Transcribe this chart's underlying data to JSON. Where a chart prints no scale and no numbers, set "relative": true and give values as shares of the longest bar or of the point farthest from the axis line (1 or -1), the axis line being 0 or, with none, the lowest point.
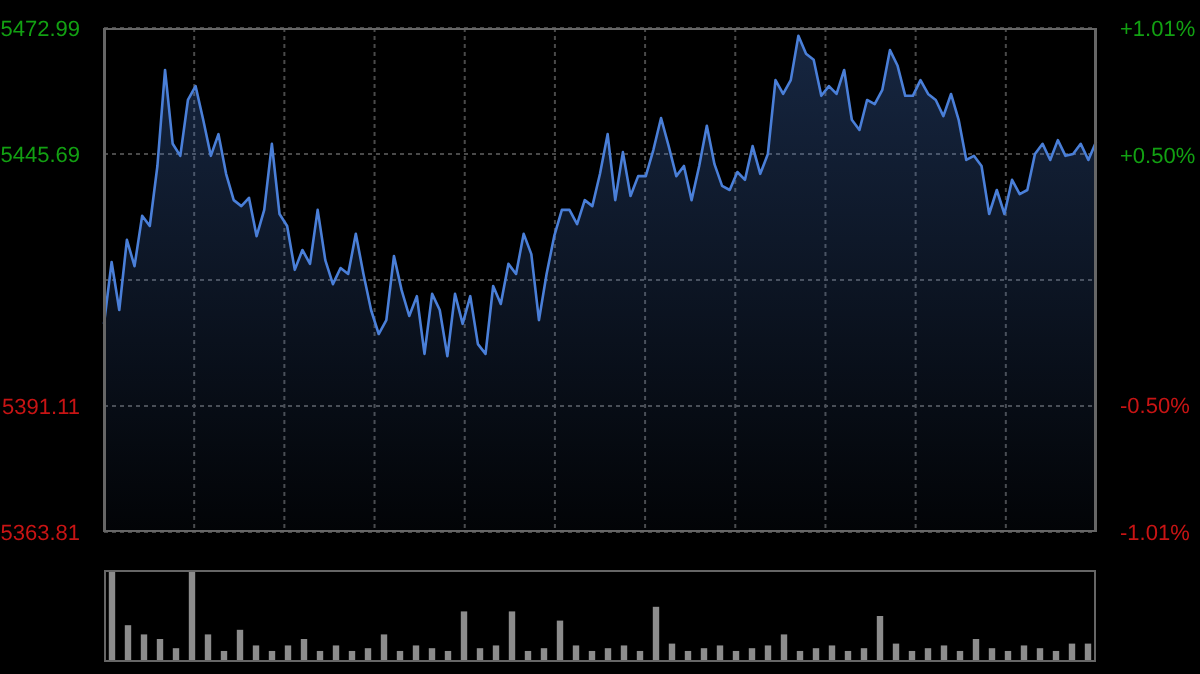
{
  "chart_data": [
    {
      "type": "area",
      "categories": [
        null,
        null,
        null,
        null,
        null,
        null,
        null,
        null,
        null,
        null,
        null,
        null,
        null,
        null,
        null,
        null,
        null,
        null,
        null,
        null,
        null,
        null,
        null,
        null,
        null,
        null,
        null,
        null,
        null,
        null,
        null,
        null,
        null,
        null,
        null,
        null,
        null,
        null,
        null,
        null,
        null,
        null,
        null,
        null,
        null,
        null,
        null,
        null,
        null,
        null,
        null,
        null,
        null,
        null,
        null,
        null,
        null,
        null,
        null,
        null,
        null,
        null,
        null,
        null,
        null,
        null,
        null,
        null,
        null,
        null,
        null,
        null,
        null,
        null,
        null,
        null,
        null,
        null,
        null,
        null,
        null,
        null,
        null,
        null,
        null,
        null,
        null,
        null,
        null,
        null,
        null,
        null,
        null,
        null,
        null,
        null,
        null,
        null,
        null,
        null,
        null,
        null,
        null,
        null,
        null,
        null,
        null,
        null,
        null,
        null,
        null,
        null,
        null,
        null,
        null,
        null,
        null,
        null,
        null,
        null,
        null,
        null,
        null,
        null,
        null,
        null,
        null,
        null,
        null,
        null,
        null
      ],
      "series": [
        {
          "color": "#4a7fd8",
          "values": [
            5408.9,
            5422.3,
            5411.9,
            5427.1,
            5421.4,
            5432.3,
            5430.1,
            5443.1,
            5463.9,
            5447.9,
            5445.3,
            5457.4,
            5460.4,
            5453.1,
            5445.3,
            5450.0,
            5441.4,
            5435.7,
            5434.4,
            5436.2,
            5427.9,
            5433.6,
            5447.9,
            5432.7,
            5430.1,
            5420.6,
            5424.9,
            5421.9,
            5433.6,
            5422.7,
            5417.5,
            5421.0,
            5419.7,
            5428.4,
            5419.7,
            5411.9,
            5406.7,
            5409.7,
            5423.6,
            5416.2,
            5410.6,
            5414.9,
            5402.4,
            5415.4,
            5411.9,
            5401.9,
            5415.4,
            5408.9,
            5414.9,
            5404.5,
            5402.4,
            5417.1,
            5413.2,
            5421.9,
            5419.7,
            5428.4,
            5424.0,
            5409.7,
            5419.7,
            5427.9,
            5433.6,
            5433.6,
            5430.5,
            5435.7,
            5434.4,
            5441.4,
            5450.0,
            5435.7,
            5446.1,
            5436.6,
            5440.9,
            5440.9,
            5446.6,
            5453.5,
            5447.4,
            5440.9,
            5443.1,
            5435.7,
            5443.1,
            5451.8,
            5443.5,
            5438.8,
            5437.9,
            5441.8,
            5440.1,
            5447.4,
            5441.4,
            5445.7,
            5461.7,
            5458.7,
            5461.7,
            5471.3,
            5467.4,
            5466.1,
            5458.3,
            5460.4,
            5458.7,
            5463.9,
            5453.1,
            5450.9,
            5457.4,
            5456.5,
            5459.6,
            5468.2,
            5464.8,
            5458.3,
            5458.3,
            5461.7,
            5458.7,
            5457.4,
            5453.9,
            5458.7,
            5453.1,
            5444.4,
            5445.3,
            5443.1,
            5432.7,
            5437.9,
            5432.7,
            5440.1,
            5437.0,
            5437.9,
            5445.7,
            5447.9,
            5444.4,
            5448.7,
            5445.3,
            5445.7,
            5447.9,
            5444.4,
            5448.3
          ]
        }
      ],
      "ylim": [
        5363.81,
        5472.99
      ],
      "yticks": [
        5363.81,
        5391.11,
        {
          "value": 5418.4,
          "label": null
        },
        5445.69,
        5472.99
      ],
      "y2lim": [
        -1.01,
        1.01
      ],
      "y2ticks": [
        {
          "value": -1.01,
          "label": "-1.01%"
        },
        {
          "value": -0.5,
          "label": "-0.50%"
        },
        {
          "value": 0,
          "label": null
        },
        {
          "value": 0.5,
          "label": "+0.50%"
        },
        {
          "value": 1.01,
          "label": "+1.01%"
        }
      ],
      "grid": true
    },
    {
      "type": "bar",
      "relative": true,
      "categories": [
        null,
        null,
        null,
        null,
        null,
        null,
        null,
        null,
        null,
        null,
        null,
        null,
        null,
        null,
        null,
        null,
        null,
        null,
        null,
        null,
        null,
        null,
        null,
        null,
        null,
        null,
        null,
        null,
        null,
        null,
        null,
        null,
        null,
        null,
        null,
        null,
        null,
        null,
        null,
        null,
        null,
        null,
        null,
        null,
        null,
        null,
        null,
        null,
        null,
        null,
        null,
        null,
        null,
        null,
        null,
        null,
        null,
        null,
        null,
        null,
        null,
        null
      ],
      "series": [
        {
          "color": "#8c8c8c",
          "values": [
            1.0,
            0.4,
            0.3,
            0.25,
            0.15,
            1.0,
            0.3,
            0.12,
            0.35,
            0.18,
            0.12,
            0.18,
            0.25,
            0.12,
            0.18,
            0.12,
            0.15,
            0.3,
            0.12,
            0.18,
            0.15,
            0.12,
            0.55,
            0.15,
            0.18,
            0.55,
            0.12,
            0.15,
            0.45,
            0.18,
            0.12,
            0.15,
            0.18,
            0.12,
            0.6,
            0.2,
            0.12,
            0.15,
            0.18,
            0.12,
            0.15,
            0.18,
            0.3,
            0.12,
            0.15,
            0.18,
            0.12,
            0.15,
            0.5,
            0.2,
            0.12,
            0.15,
            0.18,
            0.12,
            0.25,
            0.15,
            0.12,
            0.18,
            0.15,
            0.12,
            0.2,
            0.2
          ]
        }
      ]
    }
  ]
}
